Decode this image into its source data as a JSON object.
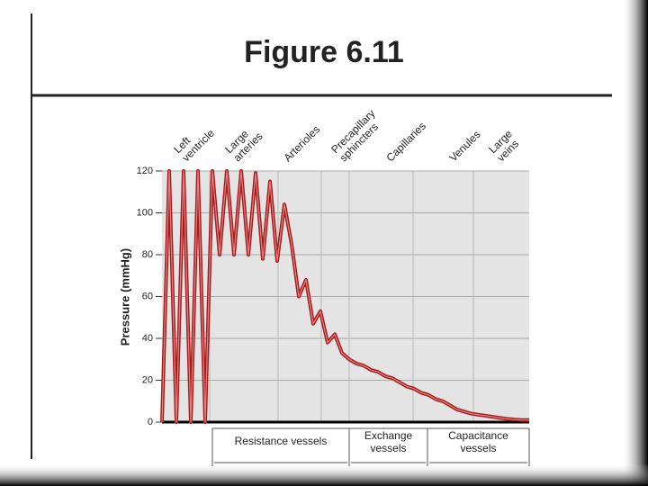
{
  "title": "Figure 6.11",
  "chart_data": {
    "type": "line",
    "y_label": "Pressure (mmHg)",
    "segment_labels": [
      [
        "Left",
        "ventricle"
      ],
      [
        "Large",
        "arteries"
      ],
      [
        "Arterioles"
      ],
      [
        "Precapillary",
        "sphincters"
      ],
      [
        "Capillaries"
      ],
      [
        "Venules"
      ],
      [
        "Large",
        "veins"
      ]
    ],
    "groups": [
      [
        "Resistance vessels"
      ],
      [
        "Exchange",
        "vessels"
      ],
      [
        "Capacitance",
        "vessels"
      ]
    ],
    "values": [
      0,
      120,
      0,
      120,
      0,
      120,
      0,
      120,
      80,
      120,
      80,
      120,
      80,
      119,
      78,
      115,
      77,
      104,
      85,
      60,
      68,
      47,
      53,
      38,
      42,
      33,
      30,
      28,
      27,
      25,
      24,
      22,
      21,
      19,
      17,
      16,
      14,
      13,
      11,
      10,
      8,
      6,
      5,
      4,
      3.5,
      3,
      2.5,
      2,
      1.5,
      1.2,
      1,
      1
    ],
    "color": "#a31b1b",
    "ylim": [
      0,
      120
    ],
    "yticks": [
      0,
      20,
      40,
      60,
      80,
      100,
      120
    ],
    "grid": true
  }
}
